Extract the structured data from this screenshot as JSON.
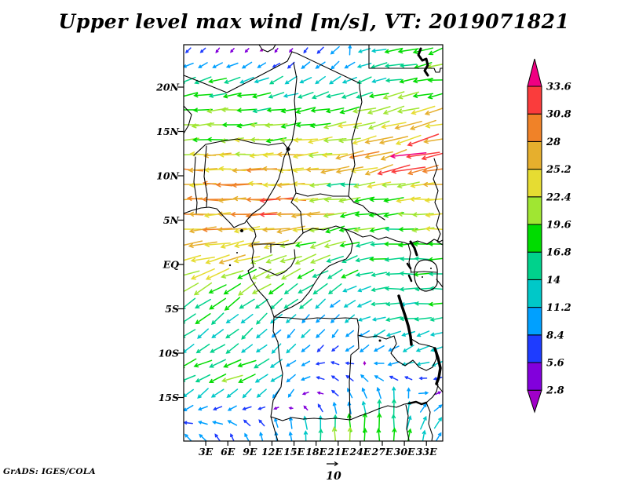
{
  "title": "Upper level max wind [m/s], VT: 2019071821",
  "credit": "GrADS: IGES/COLA",
  "ref_vector": {
    "label": "10",
    "speed_m_s": 10
  },
  "axes": {
    "lat_ticks": [
      {
        "label": "20N",
        "lat": 20
      },
      {
        "label": "15N",
        "lat": 15
      },
      {
        "label": "10N",
        "lat": 10
      },
      {
        "label": "5N",
        "lat": 5
      },
      {
        "label": "EQ",
        "lat": 0
      },
      {
        "label": "5S",
        "lat": -5
      },
      {
        "label": "10S",
        "lat": -10
      },
      {
        "label": "15S",
        "lat": -15
      }
    ],
    "lon_ticks": [
      {
        "label": "3E",
        "lon": 3
      },
      {
        "label": "6E",
        "lon": 6
      },
      {
        "label": "9E",
        "lon": 9
      },
      {
        "label": "12E",
        "lon": 12
      },
      {
        "label": "15E",
        "lon": 15
      },
      {
        "label": "18E",
        "lon": 18
      },
      {
        "label": "21E",
        "lon": 21
      },
      {
        "label": "24E",
        "lon": 24
      },
      {
        "label": "27E",
        "lon": 27
      },
      {
        "label": "30E",
        "lon": 30
      },
      {
        "label": "33E",
        "lon": 33
      }
    ]
  },
  "colorbar": {
    "units": "m/s",
    "levels": [
      2.8,
      5.6,
      8.4,
      11.2,
      14,
      16.8,
      19.6,
      22.4,
      25.2,
      28,
      30.8,
      33.6
    ],
    "labels": [
      "2.8",
      "5.6",
      "8.4",
      "11.2",
      "14",
      "16.8",
      "19.6",
      "22.4",
      "25.2",
      "28",
      "30.8",
      "33.6"
    ],
    "colors": [
      "#a000c8",
      "#8200dc",
      "#1e3cff",
      "#00a0ff",
      "#00c8c8",
      "#00d28c",
      "#00dc00",
      "#a0e632",
      "#e6dc32",
      "#e6af2d",
      "#f08228",
      "#fa3c3c",
      "#f00082"
    ]
  },
  "chart_data": {
    "type": "vector_field",
    "title": "Upper level max wind [m/s], VT: 2019071821",
    "units": "m/s",
    "region": "Central Africa",
    "lon_range_deg_east": [
      0,
      35.2
    ],
    "lat_range_deg_north": [
      -19.6,
      24.2
    ],
    "grid": {
      "cols": 18,
      "rows": 27
    },
    "dir_convention": "degrees CCW from east, direction wind blows toward",
    "control_field": {
      "lons": [
        0,
        7,
        14,
        21,
        28,
        35
      ],
      "lats": [
        24,
        21,
        18,
        14,
        11,
        9,
        6,
        3,
        0,
        -3,
        -6,
        -9,
        -12,
        -15,
        -18,
        -20
      ],
      "dir_speed": [
        [
          [
            225,
            6
          ],
          [
            230,
            5
          ],
          [
            235,
            4
          ],
          [
            225,
            10
          ],
          [
            185,
            16
          ],
          [
            200,
            21
          ]
        ],
        [
          [
            200,
            15
          ],
          [
            198,
            16
          ],
          [
            212,
            12
          ],
          [
            215,
            12
          ],
          [
            190,
            15
          ],
          [
            185,
            18
          ]
        ],
        [
          [
            185,
            18
          ],
          [
            183,
            19
          ],
          [
            190,
            17
          ],
          [
            192,
            18
          ],
          [
            196,
            21
          ],
          [
            196,
            23
          ]
        ],
        [
          [
            182,
            20
          ],
          [
            183,
            21
          ],
          [
            185,
            21
          ],
          [
            188,
            22
          ],
          [
            196,
            26
          ],
          [
            190,
            27
          ]
        ],
        [
          [
            180,
            26
          ],
          [
            181,
            27
          ],
          [
            182,
            26
          ],
          [
            188,
            27
          ],
          [
            197,
            31
          ],
          [
            188,
            33
          ]
        ],
        [
          [
            180,
            27
          ],
          [
            180,
            28
          ],
          [
            181,
            26
          ],
          [
            186,
            16
          ],
          [
            190,
            22
          ],
          [
            185,
            26
          ]
        ],
        [
          [
            180,
            27
          ],
          [
            182,
            28
          ],
          [
            180,
            31
          ],
          [
            190,
            21
          ],
          [
            186,
            17
          ],
          [
            181,
            25
          ]
        ],
        [
          [
            185,
            26
          ],
          [
            188,
            25
          ],
          [
            190,
            23
          ],
          [
            194,
            19
          ],
          [
            183,
            17
          ],
          [
            182,
            20
          ]
        ],
        [
          [
            196,
            25
          ],
          [
            198,
            24
          ],
          [
            201,
            21
          ],
          [
            206,
            17
          ],
          [
            181,
            16
          ],
          [
            179,
            16
          ]
        ],
        [
          [
            211,
            20
          ],
          [
            213,
            19
          ],
          [
            216,
            17
          ],
          [
            216,
            14
          ],
          [
            183,
            15
          ],
          [
            181,
            16
          ]
        ],
        [
          [
            216,
            16
          ],
          [
            219,
            15
          ],
          [
            222,
            12
          ],
          [
            226,
            10
          ],
          [
            186,
            15
          ],
          [
            186,
            15
          ]
        ],
        [
          [
            214,
            14
          ],
          [
            220,
            13
          ],
          [
            226,
            11
          ],
          [
            231,
            9
          ],
          [
            214,
            12
          ],
          [
            203,
            13
          ]
        ],
        [
          [
            206,
            16
          ],
          [
            196,
            22
          ],
          [
            217,
            12
          ],
          [
            140,
            9
          ],
          [
            178,
            10
          ],
          [
            196,
            13
          ]
        ],
        [
          [
            220,
            11
          ],
          [
            226,
            12
          ],
          [
            240,
            9
          ],
          [
            130,
            8
          ],
          [
            92,
            15
          ],
          [
            20,
            9
          ]
        ],
        [
          [
            175,
            9
          ],
          [
            150,
            9
          ],
          [
            100,
            10
          ],
          [
            90,
            17
          ],
          [
            90,
            18
          ],
          [
            48,
            11
          ]
        ],
        [
          [
            130,
            9
          ],
          [
            110,
            9
          ],
          [
            95,
            11
          ],
          [
            90,
            20
          ],
          [
            90,
            19
          ],
          [
            62,
            12
          ]
        ]
      ]
    },
    "overrides": [
      {
        "col": 15,
        "row": 7,
        "dir": 186,
        "spd": 34.2
      },
      {
        "col": 16,
        "row": 6,
        "dir": 200,
        "spd": 31.6
      },
      {
        "col": 6,
        "row": 11,
        "dir": 181,
        "spd": 31.5
      },
      {
        "col": 12,
        "row": 21,
        "dir": 95,
        "spd": 2.6
      },
      {
        "col": 5,
        "row": 0,
        "dir": 205,
        "spd": 2.6
      },
      {
        "col": 16,
        "row": 23,
        "dir": 4,
        "spd": 8.5
      },
      {
        "col": 11,
        "row": 0,
        "dir": 88,
        "spd": 9
      }
    ]
  }
}
